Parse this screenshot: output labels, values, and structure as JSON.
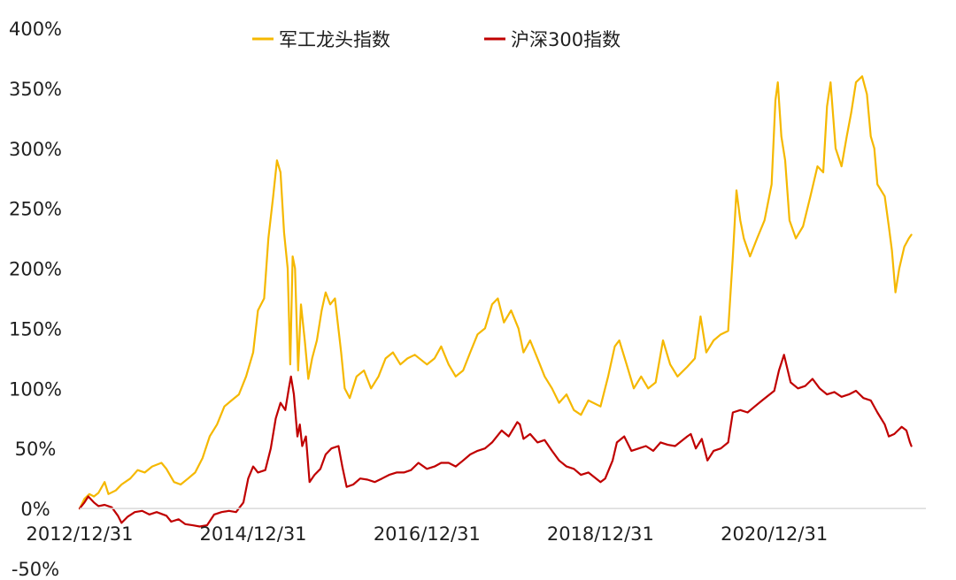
{
  "chart_data": {
    "type": "line",
    "title": "",
    "xlabel": "",
    "ylabel": "",
    "ylim": [
      -50,
      400
    ],
    "yticks": [
      -50,
      0,
      50,
      100,
      150,
      200,
      250,
      300,
      350,
      400
    ],
    "ytick_labels": [
      "-50%",
      "0%",
      "50%",
      "100%",
      "150%",
      "200%",
      "250%",
      "300%",
      "350%",
      "400%"
    ],
    "xlim": [
      "2012-12-31",
      "2022-09-30"
    ],
    "xticks": [
      "2012-12-31",
      "2014-12-31",
      "2016-12-31",
      "2018-12-31",
      "2020-12-31"
    ],
    "xtick_labels": [
      "2012/12/31",
      "2014/12/31",
      "2016/12/31",
      "2018/12/31",
      "2020/12/31"
    ],
    "legend_position": "top",
    "grid": false,
    "series": [
      {
        "name": "军工龙头指数",
        "color": "#F5B800",
        "points": [
          [
            "2012-12-31",
            0
          ],
          [
            "2013-01-20",
            8
          ],
          [
            "2013-02-10",
            12
          ],
          [
            "2013-03-01",
            10
          ],
          [
            "2013-03-20",
            13
          ],
          [
            "2013-04-15",
            22
          ],
          [
            "2013-05-01",
            12
          ],
          [
            "2013-06-01",
            15
          ],
          [
            "2013-06-25",
            20
          ],
          [
            "2013-08-01",
            25
          ],
          [
            "2013-09-01",
            32
          ],
          [
            "2013-10-01",
            30
          ],
          [
            "2013-11-01",
            35
          ],
          [
            "2013-12-10",
            38
          ],
          [
            "2013-12-31",
            33
          ],
          [
            "2014-02-01",
            22
          ],
          [
            "2014-03-01",
            20
          ],
          [
            "2014-04-01",
            25
          ],
          [
            "2014-05-01",
            30
          ],
          [
            "2014-06-01",
            42
          ],
          [
            "2014-07-01",
            60
          ],
          [
            "2014-08-01",
            70
          ],
          [
            "2014-09-01",
            85
          ],
          [
            "2014-10-01",
            90
          ],
          [
            "2014-11-01",
            95
          ],
          [
            "2014-12-01",
            110
          ],
          [
            "2014-12-31",
            130
          ],
          [
            "2015-01-20",
            165
          ],
          [
            "2015-02-15",
            175
          ],
          [
            "2015-03-05",
            225
          ],
          [
            "2015-03-25",
            260
          ],
          [
            "2015-04-10",
            290
          ],
          [
            "2015-04-25",
            280
          ],
          [
            "2015-05-10",
            230
          ],
          [
            "2015-05-25",
            200
          ],
          [
            "2015-06-05",
            120
          ],
          [
            "2015-06-15",
            210
          ],
          [
            "2015-06-25",
            200
          ],
          [
            "2015-07-08",
            115
          ],
          [
            "2015-07-20",
            170
          ],
          [
            "2015-08-05",
            140
          ],
          [
            "2015-08-20",
            108
          ],
          [
            "2015-09-05",
            125
          ],
          [
            "2015-09-25",
            140
          ],
          [
            "2015-10-15",
            165
          ],
          [
            "2015-11-01",
            180
          ],
          [
            "2015-11-20",
            170
          ],
          [
            "2015-12-10",
            175
          ],
          [
            "2016-01-05",
            130
          ],
          [
            "2016-01-20",
            100
          ],
          [
            "2016-02-10",
            92
          ],
          [
            "2016-03-10",
            110
          ],
          [
            "2016-04-10",
            115
          ],
          [
            "2016-05-10",
            100
          ],
          [
            "2016-06-10",
            110
          ],
          [
            "2016-07-10",
            125
          ],
          [
            "2016-08-10",
            130
          ],
          [
            "2016-09-10",
            120
          ],
          [
            "2016-10-10",
            125
          ],
          [
            "2016-11-10",
            128
          ],
          [
            "2016-12-31",
            120
          ],
          [
            "2017-02-01",
            125
          ],
          [
            "2017-03-01",
            135
          ],
          [
            "2017-04-01",
            120
          ],
          [
            "2017-05-01",
            110
          ],
          [
            "2017-06-01",
            115
          ],
          [
            "2017-07-01",
            130
          ],
          [
            "2017-08-01",
            145
          ],
          [
            "2017-09-01",
            150
          ],
          [
            "2017-10-01",
            170
          ],
          [
            "2017-10-25",
            175
          ],
          [
            "2017-11-20",
            155
          ],
          [
            "2017-12-20",
            165
          ],
          [
            "2018-01-20",
            150
          ],
          [
            "2018-02-10",
            130
          ],
          [
            "2018-03-10",
            140
          ],
          [
            "2018-04-10",
            125
          ],
          [
            "2018-05-10",
            110
          ],
          [
            "2018-06-10",
            100
          ],
          [
            "2018-07-10",
            88
          ],
          [
            "2018-08-10",
            95
          ],
          [
            "2018-09-10",
            82
          ],
          [
            "2018-10-10",
            78
          ],
          [
            "2018-11-10",
            90
          ],
          [
            "2018-12-31",
            85
          ],
          [
            "2019-02-01",
            110
          ],
          [
            "2019-03-01",
            135
          ],
          [
            "2019-03-20",
            140
          ],
          [
            "2019-04-20",
            120
          ],
          [
            "2019-05-20",
            100
          ],
          [
            "2019-06-20",
            110
          ],
          [
            "2019-07-20",
            100
          ],
          [
            "2019-08-20",
            105
          ],
          [
            "2019-09-20",
            140
          ],
          [
            "2019-10-20",
            120
          ],
          [
            "2019-11-20",
            110
          ],
          [
            "2019-12-31",
            118
          ],
          [
            "2020-02-01",
            125
          ],
          [
            "2020-02-25",
            160
          ],
          [
            "2020-03-20",
            130
          ],
          [
            "2020-04-20",
            140
          ],
          [
            "2020-05-20",
            145
          ],
          [
            "2020-06-20",
            148
          ],
          [
            "2020-07-10",
            210
          ],
          [
            "2020-07-25",
            265
          ],
          [
            "2020-08-10",
            240
          ],
          [
            "2020-08-25",
            225
          ],
          [
            "2020-09-20",
            210
          ],
          [
            "2020-10-20",
            225
          ],
          [
            "2020-11-20",
            240
          ],
          [
            "2020-12-20",
            270
          ],
          [
            "2021-01-05",
            340
          ],
          [
            "2021-01-15",
            355
          ],
          [
            "2021-01-30",
            310
          ],
          [
            "2021-02-15",
            290
          ],
          [
            "2021-03-05",
            240
          ],
          [
            "2021-04-01",
            225
          ],
          [
            "2021-05-01",
            235
          ],
          [
            "2021-06-01",
            260
          ],
          [
            "2021-07-01",
            285
          ],
          [
            "2021-07-25",
            280
          ],
          [
            "2021-08-10",
            335
          ],
          [
            "2021-08-25",
            355
          ],
          [
            "2021-09-15",
            300
          ],
          [
            "2021-10-10",
            285
          ],
          [
            "2021-11-01",
            310
          ],
          [
            "2021-11-20",
            330
          ],
          [
            "2021-12-10",
            355
          ],
          [
            "2022-01-05",
            360
          ],
          [
            "2022-01-25",
            345
          ],
          [
            "2022-02-10",
            310
          ],
          [
            "2022-02-25",
            300
          ],
          [
            "2022-03-10",
            270
          ],
          [
            "2022-04-10",
            260
          ],
          [
            "2022-04-27",
            235
          ],
          [
            "2022-05-10",
            215
          ],
          [
            "2022-05-25",
            180
          ],
          [
            "2022-06-10",
            200
          ],
          [
            "2022-07-01",
            218
          ],
          [
            "2022-07-20",
            225
          ],
          [
            "2022-07-31",
            228
          ]
        ]
      },
      {
        "name": "沪深300指数",
        "color": "#C00000",
        "points": [
          [
            "2012-12-31",
            0
          ],
          [
            "2013-01-20",
            5
          ],
          [
            "2013-02-05",
            10
          ],
          [
            "2013-03-01",
            5
          ],
          [
            "2013-03-20",
            2
          ],
          [
            "2013-04-15",
            3
          ],
          [
            "2013-05-15",
            1
          ],
          [
            "2013-06-10",
            -6
          ],
          [
            "2013-06-25",
            -12
          ],
          [
            "2013-07-20",
            -7
          ],
          [
            "2013-08-20",
            -3
          ],
          [
            "2013-09-20",
            -2
          ],
          [
            "2013-10-20",
            -5
          ],
          [
            "2013-11-20",
            -3
          ],
          [
            "2013-12-31",
            -6
          ],
          [
            "2014-01-20",
            -11
          ],
          [
            "2014-02-20",
            -9
          ],
          [
            "2014-03-20",
            -13
          ],
          [
            "2014-04-20",
            -14
          ],
          [
            "2014-05-20",
            -15
          ],
          [
            "2014-06-20",
            -14
          ],
          [
            "2014-07-20",
            -5
          ],
          [
            "2014-08-20",
            -3
          ],
          [
            "2014-09-20",
            -2
          ],
          [
            "2014-10-20",
            -3
          ],
          [
            "2014-11-20",
            5
          ],
          [
            "2014-12-10",
            25
          ],
          [
            "2014-12-31",
            35
          ],
          [
            "2015-01-20",
            30
          ],
          [
            "2015-02-20",
            32
          ],
          [
            "2015-03-15",
            50
          ],
          [
            "2015-04-05",
            75
          ],
          [
            "2015-04-25",
            88
          ],
          [
            "2015-05-15",
            82
          ],
          [
            "2015-05-30",
            100
          ],
          [
            "2015-06-08",
            110
          ],
          [
            "2015-06-20",
            95
          ],
          [
            "2015-07-05",
            60
          ],
          [
            "2015-07-15",
            70
          ],
          [
            "2015-07-25",
            52
          ],
          [
            "2015-08-10",
            60
          ],
          [
            "2015-08-25",
            22
          ],
          [
            "2015-09-15",
            28
          ],
          [
            "2015-10-10",
            33
          ],
          [
            "2015-11-01",
            45
          ],
          [
            "2015-11-25",
            50
          ],
          [
            "2015-12-25",
            52
          ],
          [
            "2016-01-10",
            35
          ],
          [
            "2016-01-28",
            18
          ],
          [
            "2016-02-25",
            20
          ],
          [
            "2016-03-25",
            25
          ],
          [
            "2016-04-25",
            24
          ],
          [
            "2016-05-25",
            22
          ],
          [
            "2016-06-25",
            25
          ],
          [
            "2016-07-25",
            28
          ],
          [
            "2016-08-25",
            30
          ],
          [
            "2016-09-25",
            30
          ],
          [
            "2016-10-25",
            32
          ],
          [
            "2016-11-25",
            38
          ],
          [
            "2016-12-31",
            33
          ],
          [
            "2017-02-01",
            35
          ],
          [
            "2017-03-01",
            38
          ],
          [
            "2017-04-01",
            38
          ],
          [
            "2017-05-01",
            35
          ],
          [
            "2017-06-01",
            40
          ],
          [
            "2017-07-01",
            45
          ],
          [
            "2017-08-01",
            48
          ],
          [
            "2017-09-01",
            50
          ],
          [
            "2017-10-01",
            55
          ],
          [
            "2017-11-10",
            65
          ],
          [
            "2017-12-10",
            60
          ],
          [
            "2018-01-15",
            72
          ],
          [
            "2018-01-26",
            70
          ],
          [
            "2018-02-10",
            58
          ],
          [
            "2018-03-10",
            62
          ],
          [
            "2018-04-10",
            55
          ],
          [
            "2018-05-10",
            57
          ],
          [
            "2018-06-10",
            48
          ],
          [
            "2018-07-10",
            40
          ],
          [
            "2018-08-10",
            35
          ],
          [
            "2018-09-10",
            33
          ],
          [
            "2018-10-10",
            28
          ],
          [
            "2018-11-10",
            30
          ],
          [
            "2018-12-31",
            22
          ],
          [
            "2019-01-20",
            25
          ],
          [
            "2019-02-20",
            40
          ],
          [
            "2019-03-10",
            55
          ],
          [
            "2019-04-10",
            60
          ],
          [
            "2019-05-10",
            48
          ],
          [
            "2019-06-10",
            50
          ],
          [
            "2019-07-10",
            52
          ],
          [
            "2019-08-10",
            48
          ],
          [
            "2019-09-10",
            55
          ],
          [
            "2019-10-10",
            53
          ],
          [
            "2019-11-10",
            52
          ],
          [
            "2019-12-31",
            60
          ],
          [
            "2020-01-15",
            62
          ],
          [
            "2020-02-05",
            50
          ],
          [
            "2020-03-01",
            58
          ],
          [
            "2020-03-25",
            40
          ],
          [
            "2020-04-20",
            48
          ],
          [
            "2020-05-20",
            50
          ],
          [
            "2020-06-20",
            55
          ],
          [
            "2020-07-10",
            80
          ],
          [
            "2020-08-10",
            82
          ],
          [
            "2020-09-10",
            80
          ],
          [
            "2020-10-10",
            85
          ],
          [
            "2020-11-10",
            90
          ],
          [
            "2020-12-31",
            98
          ],
          [
            "2021-01-20",
            115
          ],
          [
            "2021-02-10",
            128
          ],
          [
            "2021-03-10",
            105
          ],
          [
            "2021-04-10",
            100
          ],
          [
            "2021-05-10",
            102
          ],
          [
            "2021-06-10",
            108
          ],
          [
            "2021-07-10",
            100
          ],
          [
            "2021-08-10",
            95
          ],
          [
            "2021-09-10",
            97
          ],
          [
            "2021-10-10",
            93
          ],
          [
            "2021-11-10",
            95
          ],
          [
            "2021-12-10",
            98
          ],
          [
            "2022-01-10",
            92
          ],
          [
            "2022-02-10",
            90
          ],
          [
            "2022-03-10",
            80
          ],
          [
            "2022-04-10",
            70
          ],
          [
            "2022-04-27",
            60
          ],
          [
            "2022-05-20",
            62
          ],
          [
            "2022-06-20",
            68
          ],
          [
            "2022-07-10",
            65
          ],
          [
            "2022-07-25",
            55
          ],
          [
            "2022-07-31",
            52
          ]
        ]
      }
    ]
  }
}
